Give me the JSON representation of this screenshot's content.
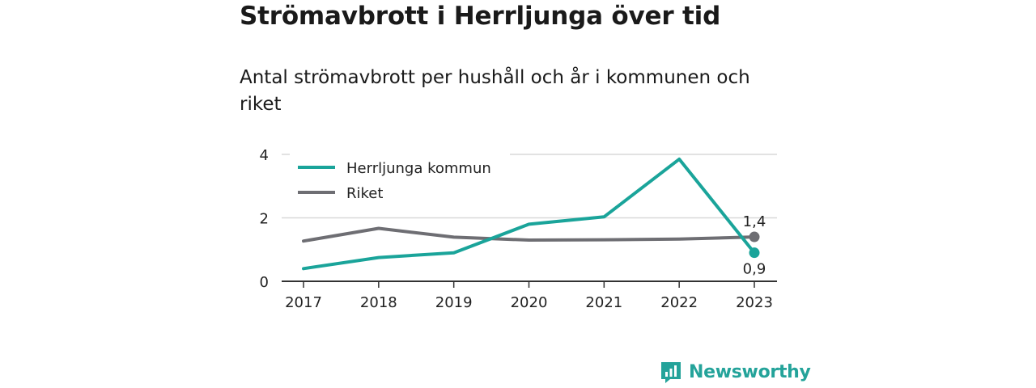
{
  "title": "Strömavbrott i Herrljunga över tid",
  "subtitle": "Antal strömavbrott per hushåll och år i kommunen och riket",
  "brand": {
    "name": "Newsworthy",
    "icon": "newsworthy-logo-icon",
    "color": "#24a39a"
  },
  "chart_data": {
    "type": "line",
    "title": "Strömavbrott i Herrljunga över tid",
    "subtitle": "Antal strömavbrott per hushåll och år i kommunen och riket",
    "categories": [
      "2017",
      "2018",
      "2019",
      "2020",
      "2021",
      "2022",
      "2023"
    ],
    "series": [
      {
        "name": "Herrljunga kommun",
        "color": "#1aa49a",
        "values": [
          0.4,
          0.75,
          0.9,
          1.8,
          2.03,
          3.85,
          0.9
        ],
        "end_label": "0,9"
      },
      {
        "name": "Riket",
        "color": "#6e6e73",
        "values": [
          1.27,
          1.67,
          1.39,
          1.3,
          1.31,
          1.33,
          1.4
        ],
        "end_label": "1,4"
      }
    ],
    "yticks": [
      0,
      2,
      4
    ],
    "ylim": [
      0,
      4
    ],
    "grid": true,
    "legend": "top-left"
  }
}
